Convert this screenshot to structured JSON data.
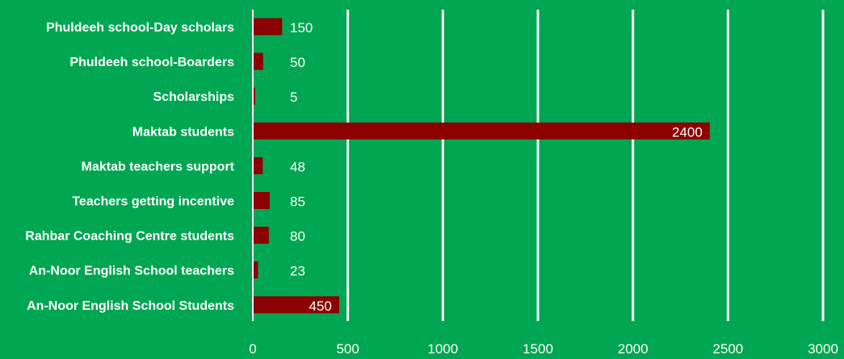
{
  "chart_data": {
    "type": "bar",
    "orientation": "horizontal",
    "categories": [
      "Phuldeeh school-Day scholars",
      "Phuldeeh school-Boarders",
      "Scholarships",
      "Maktab students",
      "Maktab teachers support",
      "Teachers getting incentive",
      "Rahbar Coaching Centre students",
      "An-Noor English School teachers",
      "An-Noor English School Students"
    ],
    "values": [
      150,
      50,
      5,
      2400,
      48,
      85,
      80,
      23,
      450
    ],
    "data_labels": [
      "150",
      "50",
      "5",
      "2400",
      "48",
      "85",
      "80",
      "23",
      "450"
    ],
    "xlim": [
      0,
      3000
    ],
    "x_ticks": [
      0,
      500,
      1000,
      1500,
      2000,
      2500,
      3000
    ],
    "x_tick_labels": [
      "0",
      "500",
      "1000",
      "1500",
      "2000",
      "2500",
      "3000"
    ],
    "grid": "vertical",
    "legend": "none",
    "title": "",
    "xlabel": "",
    "ylabel": "",
    "colors": {
      "background": "#00a651",
      "bar": "#8b0000",
      "text": "#ffffff",
      "grid": "#ffffff"
    }
  }
}
